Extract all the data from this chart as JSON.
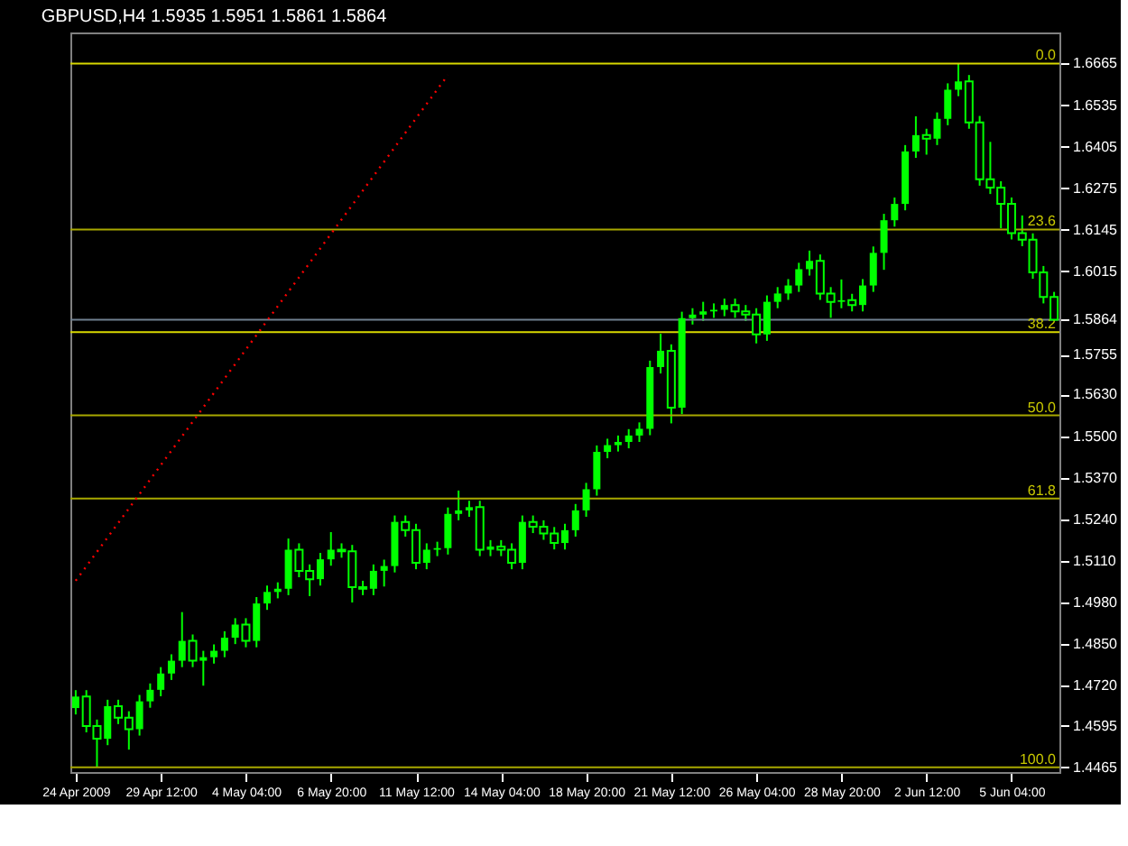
{
  "chart_data": {
    "type": "candlestick",
    "title": "GBPUSD,H4  1.5935 1.5951 1.5861 1.5864",
    "categories": [
      "24 Apr 2009",
      null,
      null,
      null,
      null,
      null,
      null,
      null,
      "29 Apr 12:00",
      null,
      null,
      null,
      null,
      null,
      null,
      null,
      "4 May 04:00",
      null,
      null,
      null,
      null,
      null,
      null,
      null,
      "6 May 20:00",
      null,
      null,
      null,
      null,
      null,
      null,
      null,
      "11 May 12:00",
      null,
      null,
      null,
      null,
      null,
      null,
      null,
      "14 May 04:00",
      null,
      null,
      null,
      null,
      null,
      null,
      null,
      "18 May 20:00",
      null,
      null,
      null,
      null,
      null,
      null,
      null,
      "21 May 12:00",
      null,
      null,
      null,
      null,
      null,
      null,
      null,
      "26 May 04:00",
      null,
      null,
      null,
      null,
      null,
      null,
      null,
      "28 May 20:00",
      null,
      null,
      null,
      null,
      null,
      null,
      null,
      "2 Jun 12:00",
      null,
      null,
      null,
      null,
      null,
      null,
      null,
      "5 Jun 04:00",
      null,
      null,
      null,
      null
    ],
    "ylim": [
      1.445,
      1.6762
    ],
    "yticks": [
      1.6665,
      1.6535,
      1.6405,
      1.6275,
      1.6145,
      1.6015,
      1.5864,
      1.5755,
      {
        "value": 1.563,
        "label": "1.5630"
      },
      {
        "value": 1.55,
        "label": "1.5500"
      },
      {
        "value": 1.537,
        "label": "1.5370"
      },
      {
        "value": 1.524,
        "label": "1.5240"
      },
      {
        "value": 1.511,
        "label": "1.5110"
      },
      {
        "value": 1.498,
        "label": "1.4980"
      },
      {
        "value": 1.485,
        "label": "1.4850"
      },
      {
        "value": 1.472,
        "label": "1.4720"
      },
      1.4595,
      1.4465
    ],
    "grid": false,
    "series": [
      {
        "type": "candlestick",
        "color": "#00ff00",
        "ohlc": [
          [
            1.465,
            1.4706,
            1.463,
            1.4686
          ],
          [
            1.4686,
            1.4706,
            1.4574,
            1.4594
          ],
          [
            1.4594,
            1.4614,
            1.4465,
            1.4554
          ],
          [
            1.4554,
            1.4676,
            1.4534,
            1.4656
          ],
          [
            1.4656,
            1.4676,
            1.46,
            1.462
          ],
          [
            1.462,
            1.464,
            1.452,
            1.4584
          ],
          [
            1.4584,
            1.4691,
            1.4564,
            1.4671
          ],
          [
            1.4671,
            1.4727,
            1.4651,
            1.4707
          ],
          [
            1.4707,
            1.4778,
            1.4687,
            1.4758
          ],
          [
            1.4758,
            1.4818,
            1.4738,
            1.4798
          ],
          [
            1.4798,
            1.495,
            1.4778,
            1.486
          ],
          [
            1.486,
            1.488,
            1.4778,
            1.4798
          ],
          [
            1.4798,
            1.4829,
            1.472,
            1.4809
          ],
          [
            1.4809,
            1.4849,
            1.4789,
            1.4829
          ],
          [
            1.4829,
            1.489,
            1.4809,
            1.487
          ],
          [
            1.487,
            1.4931,
            1.485,
            1.4911
          ],
          [
            1.4911,
            1.4931,
            1.484,
            1.486
          ],
          [
            1.486,
            1.4997,
            1.484,
            1.4977
          ],
          [
            1.4977,
            1.5033,
            1.4957,
            1.5013
          ],
          [
            1.5013,
            1.5043,
            1.4993,
            1.5023
          ],
          [
            1.5023,
            1.518,
            1.5003,
            1.5145
          ],
          [
            1.5145,
            1.5165,
            1.5059,
            1.5079
          ],
          [
            1.5079,
            1.5099,
            1.5,
            1.5053
          ],
          [
            1.5053,
            1.5135,
            1.5033,
            1.5115
          ],
          [
            1.5115,
            1.52,
            1.5095,
            1.5145
          ],
          [
            1.5145,
            1.5165,
            1.512,
            1.514
          ],
          [
            1.514,
            1.516,
            1.498,
            1.5028
          ],
          [
            1.5028,
            1.5048,
            1.5003,
            1.5023
          ],
          [
            1.5023,
            1.5099,
            1.5003,
            1.5079
          ],
          [
            1.5079,
            1.5114,
            1.503,
            1.5094
          ],
          [
            1.5094,
            1.5252,
            1.5074,
            1.5232
          ],
          [
            1.5232,
            1.5252,
            1.5186,
            1.5206
          ],
          [
            1.5206,
            1.5226,
            1.5084,
            1.5104
          ],
          [
            1.5104,
            1.5165,
            1.5084,
            1.5145
          ],
          [
            1.5145,
            1.517,
            1.5125,
            1.515
          ],
          [
            1.515,
            1.5277,
            1.513,
            1.5257
          ],
          [
            1.5257,
            1.533,
            1.5237,
            1.5268
          ],
          [
            1.5268,
            1.5298,
            1.5248,
            1.5278
          ],
          [
            1.5278,
            1.5298,
            1.5125,
            1.5145
          ],
          [
            1.5145,
            1.5175,
            1.5125,
            1.5155
          ],
          [
            1.5155,
            1.5175,
            1.5125,
            1.5145
          ],
          [
            1.5145,
            1.5165,
            1.5084,
            1.5104
          ],
          [
            1.5104,
            1.5252,
            1.5084,
            1.5232
          ],
          [
            1.5232,
            1.5252,
            1.5197,
            1.5217
          ],
          [
            1.5217,
            1.5237,
            1.5176,
            1.5196
          ],
          [
            1.5196,
            1.5216,
            1.5146,
            1.5166
          ],
          [
            1.5166,
            1.5226,
            1.5146,
            1.5206
          ],
          [
            1.5206,
            1.5288,
            1.5186,
            1.5268
          ],
          [
            1.5268,
            1.5354,
            1.5248,
            1.5334
          ],
          [
            1.5334,
            1.5471,
            1.5314,
            1.5451
          ],
          [
            1.5451,
            1.5492,
            1.5431,
            1.5472
          ],
          [
            1.5472,
            1.5502,
            1.5452,
            1.5482
          ],
          [
            1.5482,
            1.5522,
            1.5462,
            1.5502
          ],
          [
            1.5502,
            1.5543,
            1.5482,
            1.5523
          ],
          [
            1.5523,
            1.5736,
            1.5503,
            1.5716
          ],
          [
            1.5716,
            1.582,
            1.5696,
            1.5767
          ],
          [
            1.5767,
            1.5787,
            1.554,
            1.5589
          ],
          [
            1.5589,
            1.5889,
            1.5569,
            1.5869
          ],
          [
            1.5869,
            1.59,
            1.5849,
            1.588
          ],
          [
            1.588,
            1.592,
            1.586,
            1.589
          ],
          [
            1.589,
            1.5915,
            1.587,
            1.5895
          ],
          [
            1.5895,
            1.593,
            1.5875,
            1.591
          ],
          [
            1.591,
            1.593,
            1.587,
            1.589
          ],
          [
            1.589,
            1.591,
            1.586,
            1.588
          ],
          [
            1.588,
            1.59,
            1.579,
            1.5818
          ],
          [
            1.5818,
            1.594,
            1.5798,
            1.592
          ],
          [
            1.592,
            1.5966,
            1.59,
            1.5946
          ],
          [
            1.5946,
            1.5991,
            1.5926,
            1.5971
          ],
          [
            1.5971,
            1.6042,
            1.5951,
            1.6022
          ],
          [
            1.6022,
            1.608,
            1.6002,
            1.6048
          ],
          [
            1.6048,
            1.6068,
            1.5926,
            1.5946
          ],
          [
            1.5946,
            1.5966,
            1.587,
            1.592
          ],
          [
            1.592,
            1.599,
            1.59,
            1.5925
          ],
          [
            1.5925,
            1.5945,
            1.589,
            1.591
          ],
          [
            1.591,
            1.5991,
            1.589,
            1.5971
          ],
          [
            1.5971,
            1.6093,
            1.5951,
            1.6073
          ],
          [
            1.6073,
            1.6195,
            1.602,
            1.6175
          ],
          [
            1.6175,
            1.6246,
            1.6155,
            1.6226
          ],
          [
            1.6226,
            1.641,
            1.6206,
            1.639
          ],
          [
            1.639,
            1.65,
            1.637,
            1.6441
          ],
          [
            1.6441,
            1.6461,
            1.638,
            1.643
          ],
          [
            1.643,
            1.6512,
            1.641,
            1.6492
          ],
          [
            1.6492,
            1.6603,
            1.6472,
            1.6583
          ],
          [
            1.6583,
            1.6665,
            1.6563,
            1.6609
          ],
          [
            1.6609,
            1.6629,
            1.6461,
            1.6481
          ],
          [
            1.6481,
            1.6501,
            1.6283,
            1.6303
          ],
          [
            1.6303,
            1.642,
            1.6257,
            1.6277
          ],
          [
            1.6277,
            1.6297,
            1.615,
            1.6226
          ],
          [
            1.6226,
            1.6246,
            1.6115,
            1.6135
          ],
          [
            1.6135,
            1.619,
            1.6094,
            1.6114
          ],
          [
            1.6114,
            1.6134,
            1.5992,
            1.6012
          ],
          [
            1.6012,
            1.6032,
            1.5915,
            1.5935
          ],
          [
            1.5935,
            1.5951,
            1.5861,
            1.5864
          ]
        ]
      },
      {
        "type": "line",
        "color": "#ff0000",
        "line_style": "dotted",
        "values": [
          1.5048,
          null,
          null,
          null,
          null,
          null,
          null,
          null,
          null,
          null,
          null,
          null,
          null,
          null,
          null,
          null,
          null,
          null,
          null,
          null,
          null,
          null,
          null,
          null,
          null,
          null,
          null,
          null,
          null,
          null,
          null,
          null,
          null,
          null,
          null,
          1.6629,
          null,
          null,
          null,
          null,
          null,
          null,
          null,
          null,
          null,
          null,
          null,
          null,
          null,
          null,
          null,
          null,
          null,
          null,
          null,
          null,
          null,
          null,
          null,
          null,
          null,
          null,
          null,
          null,
          null,
          null,
          null,
          null,
          null,
          null,
          null,
          null,
          null,
          null,
          null,
          null,
          null,
          null,
          null,
          null,
          null,
          null,
          null,
          null,
          null,
          null,
          null,
          null,
          null,
          null,
          null,
          null,
          null
        ]
      }
    ],
    "ref_lines": [
      {
        "axis": "y",
        "value": 1.6665,
        "color": "#d8d800"
      },
      {
        "axis": "y",
        "value": 1.6146,
        "color": "#a8a800"
      },
      {
        "axis": "y",
        "value": 1.5864,
        "color": "#708090"
      },
      {
        "axis": "y",
        "value": 1.5825,
        "color": "#d8d800"
      },
      {
        "axis": "y",
        "value": 1.5565,
        "color": "#a8a800"
      },
      {
        "axis": "y",
        "value": 1.5305,
        "color": "#a8a800"
      },
      {
        "axis": "y",
        "value": 1.4465,
        "color": "#a8a800"
      }
    ],
    "annotations": [
      {
        "text": "0.0",
        "y": 1.6665
      },
      {
        "text": "23.6",
        "y": 1.6146
      },
      {
        "text": "38.2",
        "y": 1.5825
      },
      {
        "text": "50.0",
        "y": 1.5565
      },
      {
        "text": "61.8",
        "y": 1.5305
      },
      {
        "text": "100.0",
        "y": 1.4465
      }
    ]
  }
}
